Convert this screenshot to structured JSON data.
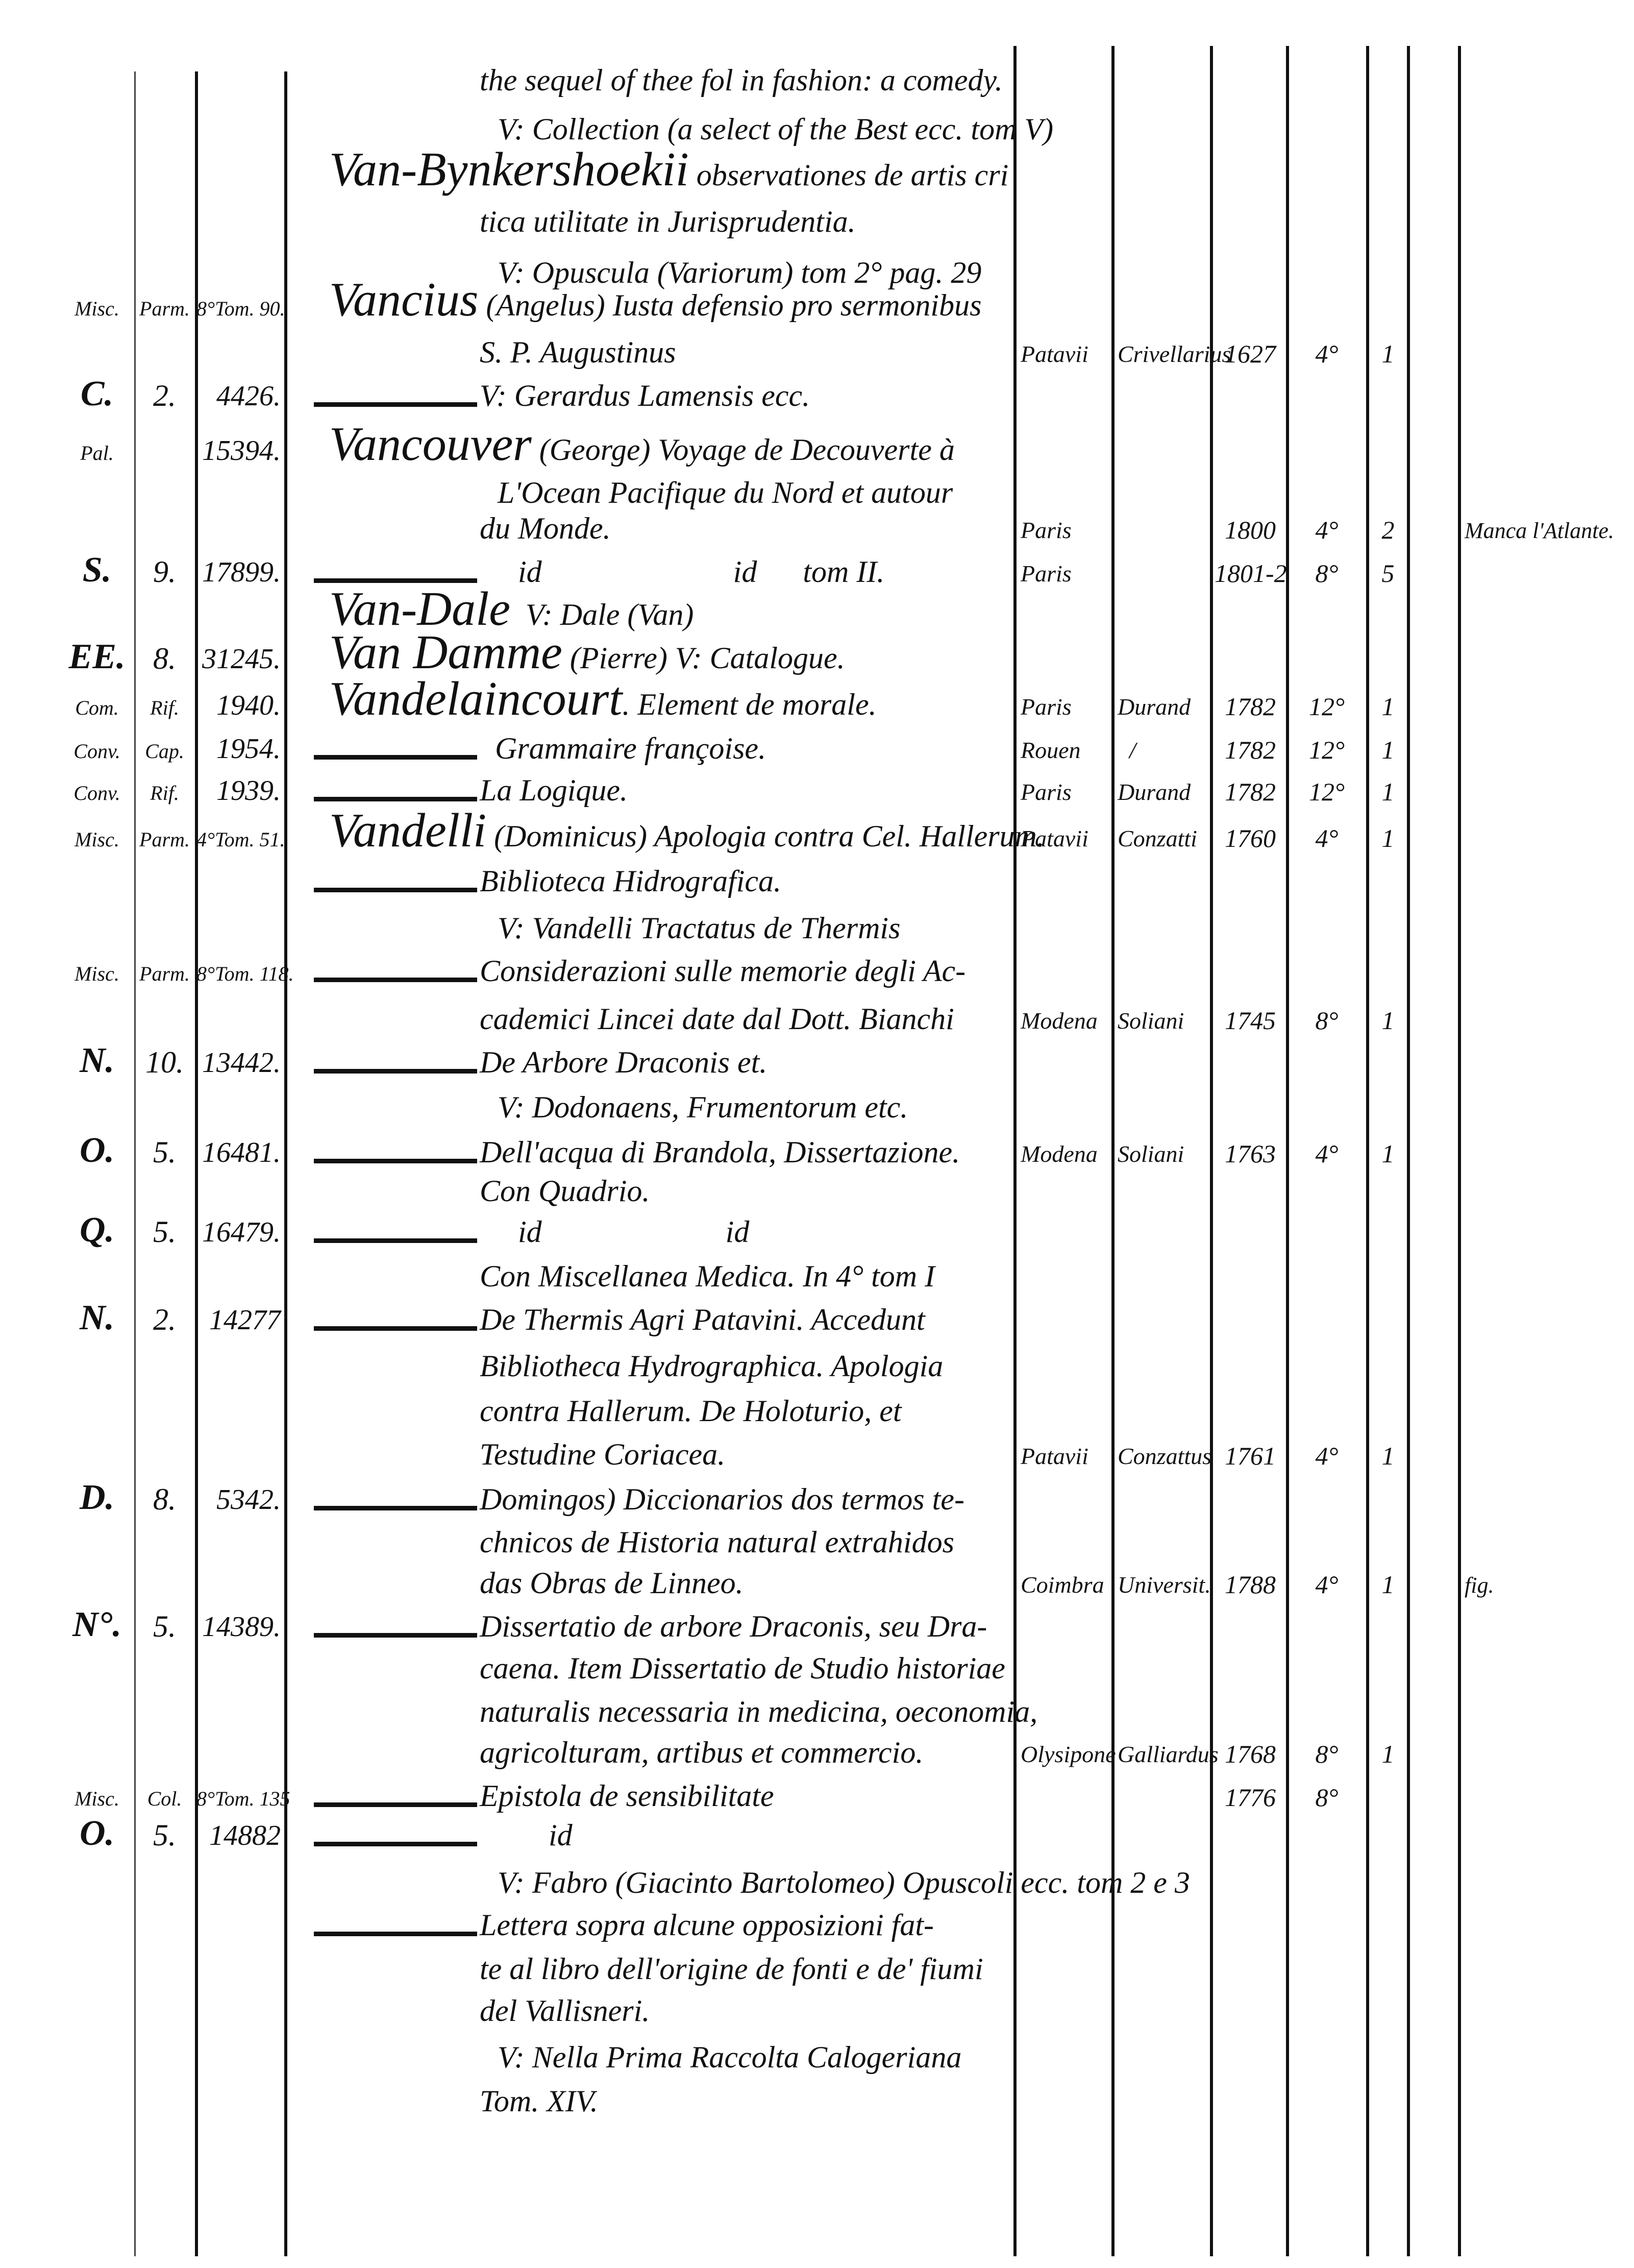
{
  "rows": [
    {
      "text": "the sequel of thee fol in fashion: a comedy."
    },
    {
      "text": "V: Collection (a select of the Best ecc. tom V)",
      "indent": true
    },
    {
      "heading": "Van-Bynkershoekii",
      "text": " observationes de artis cri"
    },
    {
      "text": "tica utilitate in Jurisprudentia."
    },
    {
      "text": "V: Opuscula (Variorum) tom 2° pag. 29",
      "indent": true
    },
    {
      "shelf": "Misc.",
      "case": "Parm.",
      "number": "8°Tom. 90.",
      "heading": "Vancius",
      "text": " (Angelus) Iusta defensio pro sermonibus"
    },
    {
      "text": "S. P. Augustinus",
      "place": "Patavii",
      "printer": "Crivellarius",
      "year": "1627",
      "format": "4°",
      "volumes": "1"
    },
    {
      "shelf": "C.",
      "case": "2.",
      "number": "4426.",
      "rule": true,
      "text": "V: Gerardus Lamensis ecc."
    },
    {
      "shelf": "Pal.",
      "number": "15394.",
      "heading": "Vancouver",
      "text": " (George) Voyage de Decouverte à"
    },
    {
      "text": "L'Ocean Pacifique du Nord et autour",
      "indent": true
    },
    {
      "text": "du Monde.",
      "place": "Paris",
      "year": "1800",
      "format": "4°",
      "volumes": "2",
      "note": "Manca l'Atlante."
    },
    {
      "shelf": "S.",
      "case": "9.",
      "number": "17899.",
      "rule": true,
      "text": "     id                         id      tom II.",
      "place": "Paris",
      "year": "1801-2",
      "format": "8°",
      "volumes": "5"
    },
    {
      "heading": "Van-Dale",
      "text": "  V: Dale (Van)"
    },
    {
      "shelf": "EE.",
      "case": "8.",
      "number": "31245.",
      "heading": "Van Damme",
      "text": " (Pierre) V: Catalogue."
    },
    {
      "shelf": "Com.",
      "case": "Rif.",
      "number": "1940.",
      "heading": "Vandelaincourt",
      "text": ". Element de morale.",
      "place": "Paris",
      "printer": "Durand",
      "year": "1782",
      "format": "12°",
      "volumes": "1"
    },
    {
      "shelf": "Conv.",
      "case": "Cap.",
      "number": "1954.",
      "rule": true,
      "text": "  Grammaire françoise.",
      "place": "Rouen",
      "printer": "  /",
      "year": "1782",
      "format": "12°",
      "volumes": "1"
    },
    {
      "shelf": "Conv.",
      "case": "Rif.",
      "number": "1939.",
      "rule": true,
      "text": "La Logique.",
      "place": "Paris",
      "printer": "Durand",
      "year": "1782",
      "format": "12°",
      "volumes": "1"
    },
    {
      "shelf": "Misc.",
      "case": "Parm.",
      "number": "4°Tom. 51.",
      "heading": "Vandelli",
      "text": " (Dominicus) Apologia contra Cel. Hallerum.",
      "place": "Patavii",
      "printer": "Conzatti",
      "year": "1760",
      "format": "4°",
      "volumes": "1"
    },
    {
      "rule": true,
      "text": "Biblioteca Hidrografica."
    },
    {
      "text": "V: Vandelli Tractatus de Thermis",
      "indent": true
    },
    {
      "shelf": "Misc.",
      "case": "Parm.",
      "number": "8°Tom. 118.",
      "rule": true,
      "text": "Considerazioni sulle memorie degli Ac-"
    },
    {
      "text": "cademici Lincei date dal Dott. Bianchi",
      "place": "Modena",
      "printer": "Soliani",
      "year": "1745",
      "format": "8°",
      "volumes": "1"
    },
    {
      "shelf": "N.",
      "case": "10.",
      "number": "13442.",
      "rule": true,
      "text": "De Arbore Draconis et."
    },
    {
      "text": "V: Dodonaens, Frumentorum etc.",
      "indent": true
    },
    {
      "shelf": "O.",
      "case": "5.",
      "number": "16481.",
      "rule": true,
      "text": "Dell'acqua di Brandola, Dissertazione.",
      "place": "Modena",
      "printer": "Soliani",
      "year": "1763",
      "format": "4°",
      "volumes": "1"
    },
    {
      "text": "Con Quadrio."
    },
    {
      "shelf": "Q.",
      "case": "5.",
      "number": "16479.",
      "rule": true,
      "text": "     id                        id"
    },
    {
      "text": "Con Miscellanea Medica. In 4° tom I"
    },
    {
      "shelf": "N.",
      "case": "2.",
      "number": "14277",
      "rule": true,
      "text": "De Thermis Agri Patavini. Accedunt"
    },
    {
      "text": "Bibliotheca Hydrographica. Apologia"
    },
    {
      "text": "contra Hallerum. De Holoturio, et"
    },
    {
      "text": "Testudine Coriacea.",
      "place": "Patavii",
      "printer": "Conzattus",
      "year": "1761",
      "format": "4°",
      "volumes": "1"
    },
    {
      "shelf": "D.",
      "case": "8.",
      "number": "5342.",
      "rule": true,
      "text": "Domingos) Diccionarios dos termos te-"
    },
    {
      "text": "chnicos de Historia natural extrahidos"
    },
    {
      "text": "das Obras de Linneo.",
      "place": "Coimbra",
      "printer": "Universit.",
      "year": "1788",
      "format": "4°",
      "volumes": "1",
      "note": "fig."
    },
    {
      "shelf": "N°.",
      "case": "5.",
      "number": "14389.",
      "rule": true,
      "text": "Dissertatio de arbore Draconis, seu Dra-"
    },
    {
      "text": "caena. Item Dissertatio de Studio historiae"
    },
    {
      "text": "naturalis necessaria in medicina, oeconomia,"
    },
    {
      "text": "agricolturam, artibus et commercio.",
      "place": "Olysipone",
      "printer": "Galliardus",
      "year": "1768",
      "format": "8°",
      "volumes": "1"
    },
    {
      "shelf": "Misc.",
      "case": "Col.",
      "number": "8°Tom. 135",
      "rule": true,
      "text": "Epistola de sensibilitate",
      "year": "1776",
      "format": "8°"
    },
    {
      "shelf": "O.",
      "case": "5.",
      "number": "14882",
      "rule": true,
      "text": "         id"
    },
    {
      "text": "V: Fabro (Giacinto Bartolomeo) Opuscoli ecc. tom 2 e 3",
      "indent": true
    },
    {
      "rule": true,
      "text": "Lettera sopra alcune opposizioni fat-"
    },
    {
      "text": "te al libro dell'origine de fonti e de' fiumi"
    },
    {
      "text": "del Vallisneri."
    },
    {
      "text": "V: Nella Prima Raccolta Calogeriana",
      "indent": true
    },
    {
      "text": "Tom. XIV."
    }
  ]
}
